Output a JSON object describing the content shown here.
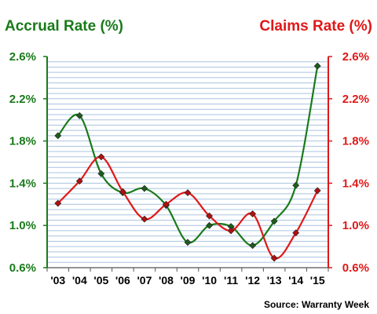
{
  "chart_data": {
    "type": "line",
    "title_left": "Accrual Rate (%)",
    "title_right": "Claims Rate (%)",
    "source": "Source: Warranty Week",
    "categories": [
      "'03",
      "'04",
      "'05",
      "'06",
      "'07",
      "'08",
      "'09",
      "'10",
      "'11",
      "'12",
      "'13",
      "'14",
      "'15"
    ],
    "ylim": [
      0.6,
      2.6
    ],
    "y_ticks": [
      "0.6%",
      "1.0%",
      "1.4%",
      "1.8%",
      "2.2%",
      "2.6%"
    ],
    "y_tick_values": [
      0.6,
      1.0,
      1.4,
      1.8,
      2.2,
      2.6
    ],
    "grid": true,
    "series": [
      {
        "name": "Accrual Rate (%)",
        "axis": "left",
        "color": "#1a7a1a",
        "values": [
          1.85,
          2.04,
          1.49,
          1.31,
          1.35,
          1.19,
          0.84,
          1.0,
          0.99,
          0.81,
          1.04,
          1.38,
          2.51
        ]
      },
      {
        "name": "Claims Rate (%)",
        "axis": "right",
        "color": "#e01818",
        "values": [
          1.21,
          1.42,
          1.65,
          1.32,
          1.06,
          1.2,
          1.31,
          1.09,
          0.95,
          1.11,
          0.69,
          0.93,
          1.33
        ]
      }
    ]
  }
}
